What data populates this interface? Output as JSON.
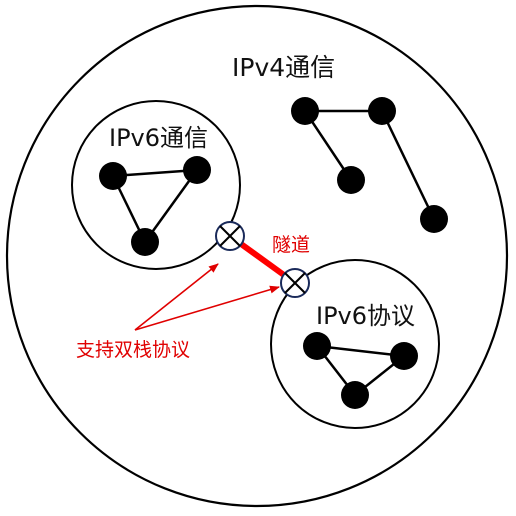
{
  "labels": {
    "outer": "IPv4通信",
    "left_inner": "IPv6通信",
    "right_inner": "IPv6协议",
    "tunnel": "隧道",
    "dual_stack": "支持双栈协议"
  },
  "colors": {
    "line": "#000000",
    "node": "#000000",
    "tunnel": "#ff0000",
    "annotation": "#e00000",
    "background": "#ffffff"
  },
  "icons": {
    "router": "crossed-circle-icon",
    "node": "filled-circle-icon"
  }
}
